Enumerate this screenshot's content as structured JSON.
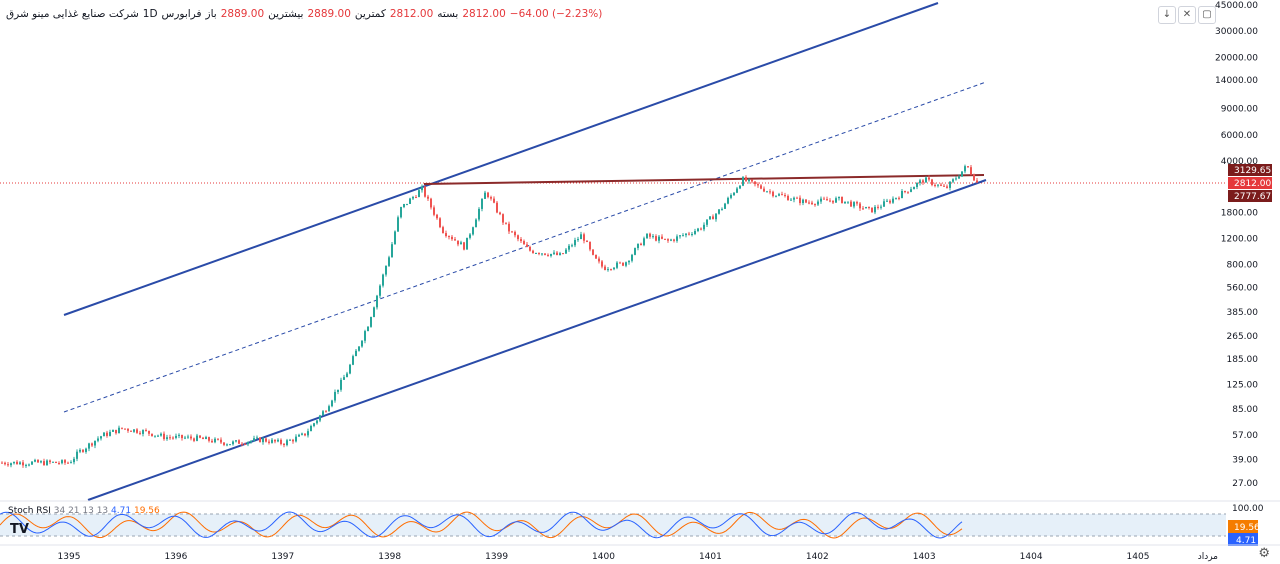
{
  "header": {
    "symbol": "شرکت صنایع غذایی مینو شرق",
    "interval": "1D",
    "exchange": "فرابورس",
    "open_label": "باز",
    "open": "2889.00",
    "high_label": "بیشترین",
    "high": "2889.00",
    "low_label": "کمترین",
    "low": "2812.00",
    "close_label": "بسته",
    "close": "2812.00",
    "change": "−64.00 (−2.23%)"
  },
  "toolbar": {
    "icons": [
      "arrow-down-icon",
      "collapse-icon",
      "fullscreen-icon"
    ]
  },
  "indicator": {
    "name": "Stoch RSI",
    "params": "34 21 13 13",
    "k_value": "4.71",
    "d_value": "19.56",
    "upper_band": "100.00",
    "k_color": "#2962ff",
    "d_color": "#ff6d00"
  },
  "chart_data": {
    "type": "candlestick",
    "y_scale": "log",
    "price_ticks": [
      "45000.00",
      "30000.00",
      "20000.00",
      "14000.00",
      "9000.00",
      "6000.00",
      "4000.00",
      "1800.00",
      "1200.00",
      "800.00",
      "560.00",
      "385.00",
      "265.00",
      "185.00",
      "125.00",
      "85.00",
      "57.00",
      "39.00",
      "27.00"
    ],
    "x_ticks": [
      "1395",
      "1396",
      "1397",
      "1398",
      "1399",
      "1400",
      "1401",
      "1402",
      "1403",
      "1404",
      "1405"
    ],
    "x_axis_month_label": "مرداد",
    "price_labels": [
      {
        "value": "3129.65",
        "color": "#7b1c1c"
      },
      {
        "value": "2812.00",
        "color": "#e5383b"
      },
      {
        "value": "2777.67",
        "color": "#7b1c1c"
      }
    ],
    "last_price": 2812,
    "series": [
      {
        "x": "1395.0",
        "y": 37
      },
      {
        "x": "1395.1",
        "y": 44
      },
      {
        "x": "1395.3",
        "y": 56
      },
      {
        "x": "1395.5",
        "y": 63
      },
      {
        "x": "1395.7",
        "y": 60
      },
      {
        "x": "1395.9",
        "y": 55
      },
      {
        "x": "1396.2",
        "y": 54
      },
      {
        "x": "1396.5",
        "y": 50
      },
      {
        "x": "1396.8",
        "y": 53
      },
      {
        "x": "1397.0",
        "y": 50
      },
      {
        "x": "1397.2",
        "y": 57
      },
      {
        "x": "1397.4",
        "y": 85
      },
      {
        "x": "1397.6",
        "y": 150
      },
      {
        "x": "1397.8",
        "y": 320
      },
      {
        "x": "1398.0",
        "y": 950
      },
      {
        "x": "1398.1",
        "y": 1900
      },
      {
        "x": "1398.3",
        "y": 2600
      },
      {
        "x": "1398.5",
        "y": 1350
      },
      {
        "x": "1398.7",
        "y": 1050
      },
      {
        "x": "1398.9",
        "y": 2500
      },
      {
        "x": "1399.1",
        "y": 1400
      },
      {
        "x": "1399.3",
        "y": 1000
      },
      {
        "x": "1399.6",
        "y": 920
      },
      {
        "x": "1399.8",
        "y": 1280
      },
      {
        "x": "1399.9",
        "y": 900
      },
      {
        "x": "1400.0",
        "y": 760
      },
      {
        "x": "1400.2",
        "y": 820
      },
      {
        "x": "1400.4",
        "y": 1250
      },
      {
        "x": "1400.6",
        "y": 1150
      },
      {
        "x": "1400.9",
        "y": 1400
      },
      {
        "x": "1401.1",
        "y": 1900
      },
      {
        "x": "1401.3",
        "y": 3000
      },
      {
        "x": "1401.6",
        "y": 2400
      },
      {
        "x": "1401.9",
        "y": 2100
      },
      {
        "x": "1402.2",
        "y": 2200
      },
      {
        "x": "1402.5",
        "y": 1850
      },
      {
        "x": "1402.7",
        "y": 2200
      },
      {
        "x": "1403.0",
        "y": 3000
      },
      {
        "x": "1403.2",
        "y": 2600
      },
      {
        "x": "1403.4",
        "y": 3700
      },
      {
        "x": "1403.5",
        "y": 2812
      }
    ],
    "channel_color": "#2a4ba8",
    "resistance_color": "#8b2a2a"
  }
}
